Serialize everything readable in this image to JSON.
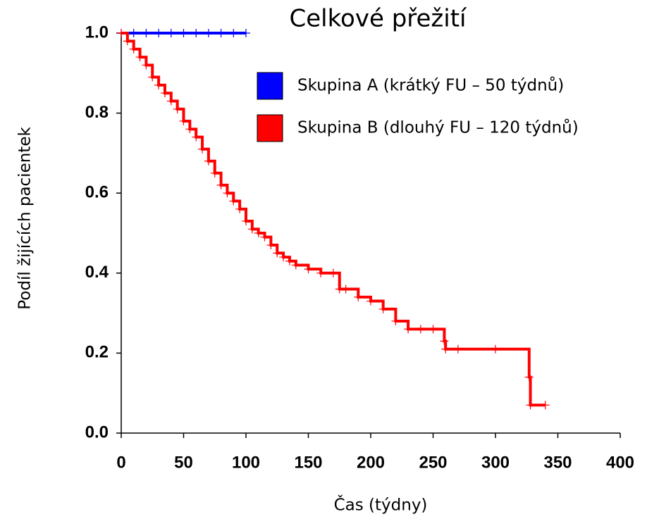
{
  "chart_data": {
    "type": "step",
    "title": "Celkové přežití",
    "x_label": "Čas (týdny)",
    "y_label": "Podíl žijících pacientek",
    "xlim": [
      0,
      400
    ],
    "xticks": [
      0,
      50,
      100,
      150,
      200,
      250,
      300,
      350,
      400
    ],
    "ylim": [
      0,
      1
    ],
    "yticks": [
      {
        "value": 0,
        "label": "0.0"
      },
      0.2,
      0.4,
      0.6,
      0.8,
      {
        "value": 1,
        "label": "1.0"
      }
    ],
    "legend": "upper right",
    "series": [
      {
        "name": "Skupina A (krátký FU – 50 týdnů)",
        "color": "#0000ff",
        "x": [
          0,
          10,
          20,
          30,
          40,
          50,
          60,
          70,
          80,
          90,
          100
        ],
        "values": [
          1,
          1,
          1,
          1,
          1,
          1,
          1,
          1,
          1,
          1,
          1
        ]
      },
      {
        "name": "Skupina B (dlouhý FU – 120 týdnů)",
        "color": "#ff0000",
        "x": [
          0,
          5,
          10,
          15,
          20,
          25,
          30,
          35,
          40,
          45,
          50,
          55,
          60,
          65,
          70,
          75,
          80,
          85,
          90,
          95,
          100,
          105,
          110,
          115,
          120,
          125,
          130,
          135,
          140,
          150,
          160,
          170,
          175,
          180,
          190,
          200,
          210,
          220,
          230,
          240,
          250,
          259,
          260,
          270,
          300,
          327,
          328,
          340
        ],
        "values": [
          1,
          0.98,
          0.96,
          0.94,
          0.92,
          0.89,
          0.87,
          0.85,
          0.83,
          0.81,
          0.78,
          0.76,
          0.74,
          0.71,
          0.68,
          0.65,
          0.62,
          0.6,
          0.58,
          0.56,
          0.53,
          0.51,
          0.5,
          0.49,
          0.47,
          0.45,
          0.44,
          0.43,
          0.42,
          0.41,
          0.4,
          0.4,
          0.36,
          0.36,
          0.34,
          0.33,
          0.31,
          0.28,
          0.26,
          0.26,
          0.26,
          0.23,
          0.21,
          0.21,
          0.21,
          0.14,
          0.07,
          0.07
        ]
      }
    ]
  }
}
